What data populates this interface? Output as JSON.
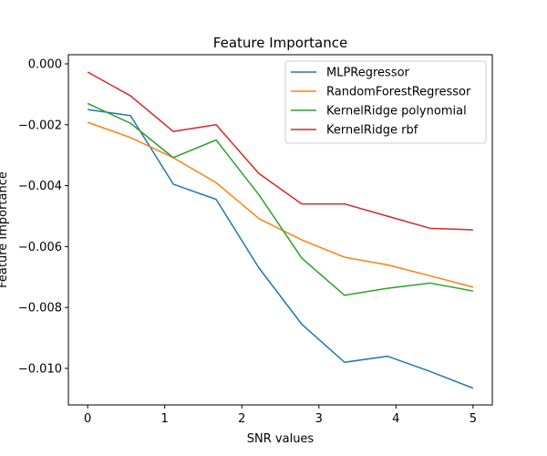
{
  "chart_data": {
    "type": "line",
    "title": "Feature Importance",
    "xlabel": "SNR values",
    "ylabel": "Feature Importance",
    "x": [
      0,
      0.556,
      1.111,
      1.667,
      2.222,
      2.778,
      3.333,
      3.889,
      4.444,
      5.0
    ],
    "xlim": [
      -0.25,
      5.25
    ],
    "ylim": [
      -0.0112,
      0.0003
    ],
    "xticks": [
      0,
      1,
      2,
      3,
      4,
      5
    ],
    "xtick_labels": [
      "0",
      "1",
      "2",
      "3",
      "4",
      "5"
    ],
    "yticks": [
      0.0,
      -0.002,
      -0.004,
      -0.006,
      -0.008,
      -0.01
    ],
    "ytick_labels": [
      "0.000",
      "−0.002",
      "−0.004",
      "−0.006",
      "−0.008",
      "−0.010"
    ],
    "grid": false,
    "legend_position": "top-right",
    "series": [
      {
        "name": "MLPRegressor",
        "color": "#1f77b4",
        "values": [
          -0.0015,
          -0.0017,
          -0.00395,
          -0.00445,
          -0.0067,
          -0.00855,
          -0.0098,
          -0.0096,
          -0.0101,
          -0.01065
        ]
      },
      {
        "name": "RandomForestRegressor",
        "color": "#ff7f0e",
        "values": [
          -0.00192,
          -0.00242,
          -0.00308,
          -0.0039,
          -0.00508,
          -0.00578,
          -0.00635,
          -0.0066,
          -0.00696,
          -0.00733
        ]
      },
      {
        "name": "KernelRidge polynomial",
        "color": "#2ca02c",
        "values": [
          -0.0013,
          -0.00195,
          -0.00308,
          -0.0025,
          -0.0043,
          -0.00638,
          -0.0076,
          -0.00737,
          -0.0072,
          -0.00746
        ]
      },
      {
        "name": "KernelRidge rbf",
        "color": "#d62728",
        "values": [
          -0.00027,
          -0.00105,
          -0.00222,
          -0.002,
          -0.0036,
          -0.0046,
          -0.0046,
          -0.005,
          -0.0054,
          -0.00545
        ]
      }
    ]
  }
}
